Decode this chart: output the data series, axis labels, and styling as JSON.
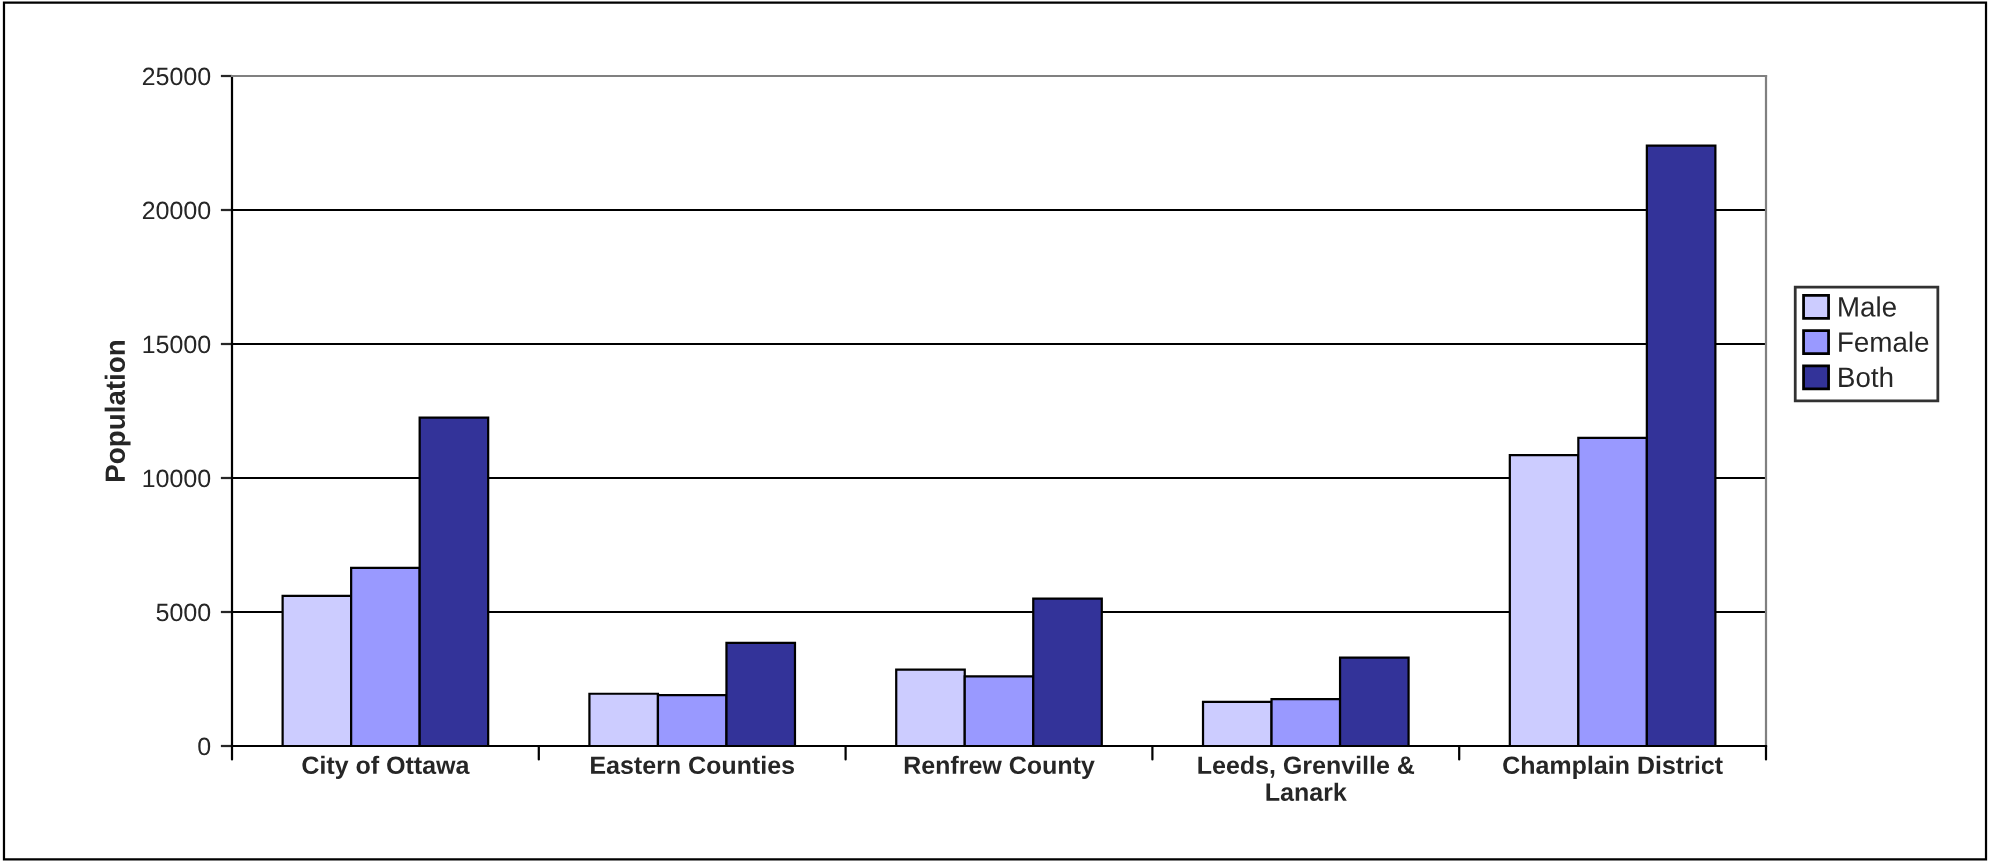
{
  "chart_data": {
    "type": "bar",
    "ylabel": "Population",
    "categories": [
      "City of Ottawa",
      "Eastern Counties",
      "Renfrew County",
      "Leeds, Grenville &\nLanark",
      "Champlain District"
    ],
    "series": [
      {
        "name": "Male",
        "color": "#ccccff",
        "values": [
          5600,
          1950,
          2850,
          1650,
          10850
        ]
      },
      {
        "name": "Female",
        "color": "#9999ff",
        "values": [
          6650,
          1900,
          2600,
          1750,
          11500
        ]
      },
      {
        "name": "Both",
        "color": "#333399",
        "values": [
          12250,
          3850,
          5500,
          3300,
          22400
        ]
      }
    ],
    "ylim": [
      0,
      25000
    ],
    "yticks": [
      0,
      5000,
      10000,
      15000,
      20000,
      25000
    ],
    "grid": "y",
    "legend": "right"
  }
}
